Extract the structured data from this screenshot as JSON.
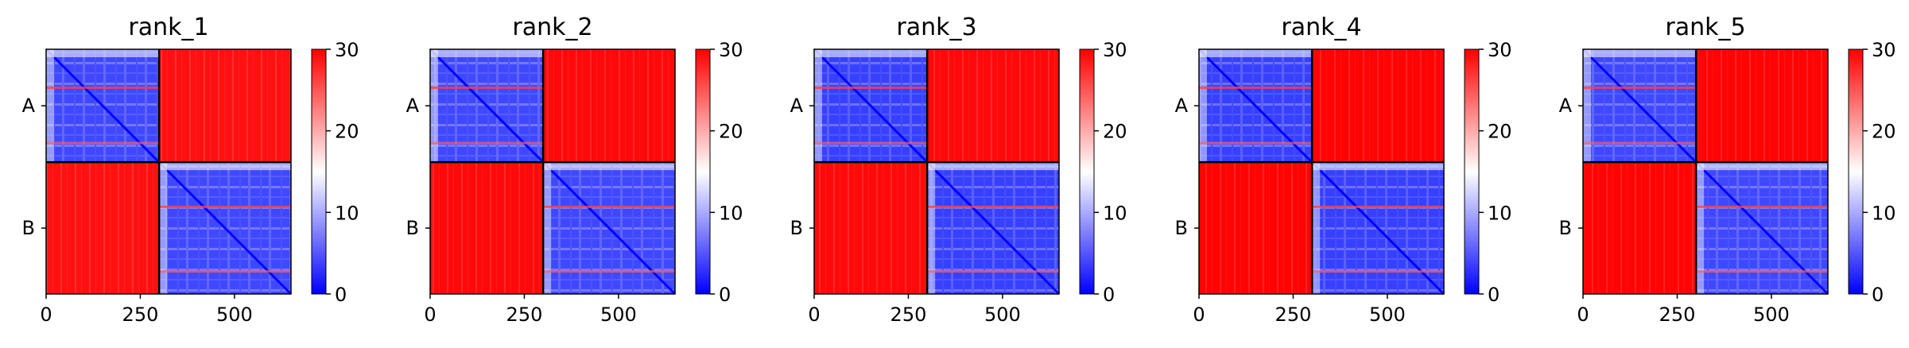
{
  "figure": {
    "type": "heatmap",
    "colorscale": [
      "#0000ff",
      "#ffffff",
      "#ff0000"
    ],
    "colorbar_range": [
      0,
      30
    ],
    "colorbar_ticks": [
      "0",
      "10",
      "20",
      "30"
    ],
    "x_ticks": [
      0,
      250,
      500
    ],
    "x_tick_labels": [
      "0",
      "250",
      "500"
    ],
    "x_range": [
      0,
      650
    ],
    "chain_boundary": 300,
    "chain_labels": [
      "A",
      "B"
    ]
  },
  "chart_data": [
    {
      "type": "heatmap",
      "title": "rank_1",
      "xlim": [
        0,
        650
      ],
      "chains": [
        {
          "name": "A",
          "range": [
            0,
            300
          ]
        },
        {
          "name": "B",
          "range": [
            300,
            650
          ]
        }
      ],
      "intra_chain_level": 5,
      "inter_chain_level": 28,
      "colorbar": [
        0,
        30
      ]
    },
    {
      "type": "heatmap",
      "title": "rank_2",
      "xlim": [
        0,
        650
      ],
      "chains": [
        {
          "name": "A",
          "range": [
            0,
            300
          ]
        },
        {
          "name": "B",
          "range": [
            300,
            650
          ]
        }
      ],
      "intra_chain_level": 5,
      "inter_chain_level": 29,
      "colorbar": [
        0,
        30
      ]
    },
    {
      "type": "heatmap",
      "title": "rank_3",
      "xlim": [
        0,
        650
      ],
      "chains": [
        {
          "name": "A",
          "range": [
            0,
            300
          ]
        },
        {
          "name": "B",
          "range": [
            300,
            650
          ]
        }
      ],
      "intra_chain_level": 4,
      "inter_chain_level": 29,
      "colorbar": [
        0,
        30
      ]
    },
    {
      "type": "heatmap",
      "title": "rank_4",
      "xlim": [
        0,
        650
      ],
      "chains": [
        {
          "name": "A",
          "range": [
            0,
            300
          ]
        },
        {
          "name": "B",
          "range": [
            300,
            650
          ]
        }
      ],
      "intra_chain_level": 4,
      "inter_chain_level": 30,
      "colorbar": [
        0,
        30
      ]
    },
    {
      "type": "heatmap",
      "title": "rank_5",
      "xlim": [
        0,
        650
      ],
      "chains": [
        {
          "name": "A",
          "range": [
            0,
            300
          ]
        },
        {
          "name": "B",
          "range": [
            300,
            650
          ]
        }
      ],
      "intra_chain_level": 5,
      "inter_chain_level": 30,
      "colorbar": [
        0,
        30
      ]
    }
  ]
}
